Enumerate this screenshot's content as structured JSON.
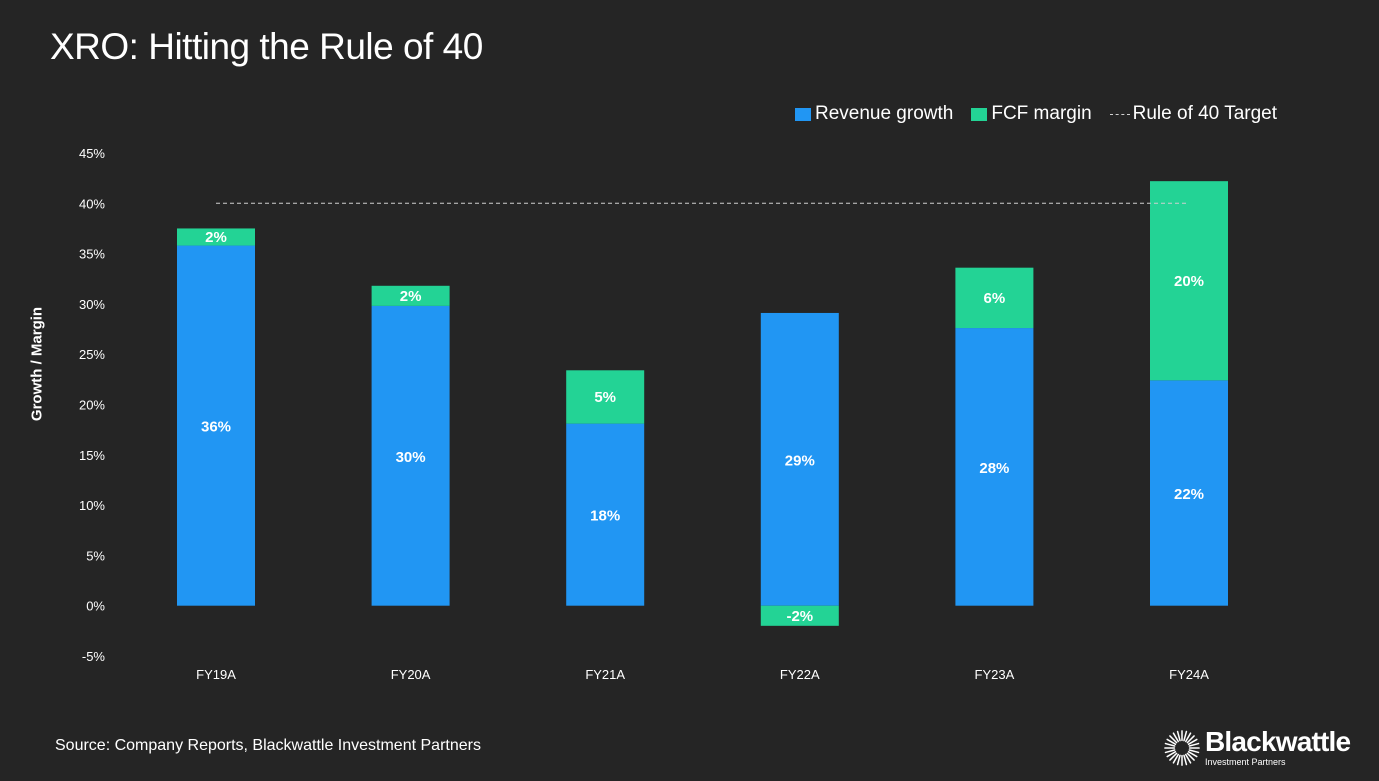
{
  "title": "XRO: Hitting the Rule of 40",
  "source": "Source: Company Reports, Blackwattle Investment Partners",
  "logo": {
    "name": "Blackwattle",
    "subtitle": "Investment Partners"
  },
  "colors": {
    "revenue": "#2196f3",
    "fcf": "#23d395",
    "target": "#d0d0d0",
    "background": "#252525"
  },
  "legend": [
    "Revenue growth",
    "FCF margin",
    "Rule of 40 Target"
  ],
  "chart_data": {
    "type": "bar",
    "stacked": true,
    "title": "XRO: Hitting the Rule of 40",
    "xlabel": "",
    "ylabel": "Growth / Margin",
    "ylim": [
      -5,
      45
    ],
    "yticks": [
      -5,
      0,
      5,
      10,
      15,
      20,
      25,
      30,
      35,
      40,
      45
    ],
    "ytick_labels": [
      "-5%",
      "0%",
      "5%",
      "10%",
      "15%",
      "20%",
      "25%",
      "30%",
      "35%",
      "40%",
      "45%"
    ],
    "categories": [
      "FY19A",
      "FY20A",
      "FY21A",
      "FY22A",
      "FY23A",
      "FY24A"
    ],
    "series": [
      {
        "name": "Revenue growth",
        "values": [
          35.8,
          29.8,
          18.1,
          29.1,
          27.6,
          22.4
        ],
        "labels": [
          "36%",
          "30%",
          "18%",
          "29%",
          "28%",
          "22%"
        ]
      },
      {
        "name": "FCF margin",
        "values": [
          1.7,
          2.0,
          5.3,
          -2.0,
          6.0,
          19.8
        ],
        "labels": [
          "2%",
          "2%",
          "5%",
          "-2%",
          "6%",
          "20%"
        ]
      }
    ],
    "target": {
      "name": "Rule of 40 Target",
      "value": 40
    },
    "grid": false,
    "legend_position": "top-right"
  }
}
